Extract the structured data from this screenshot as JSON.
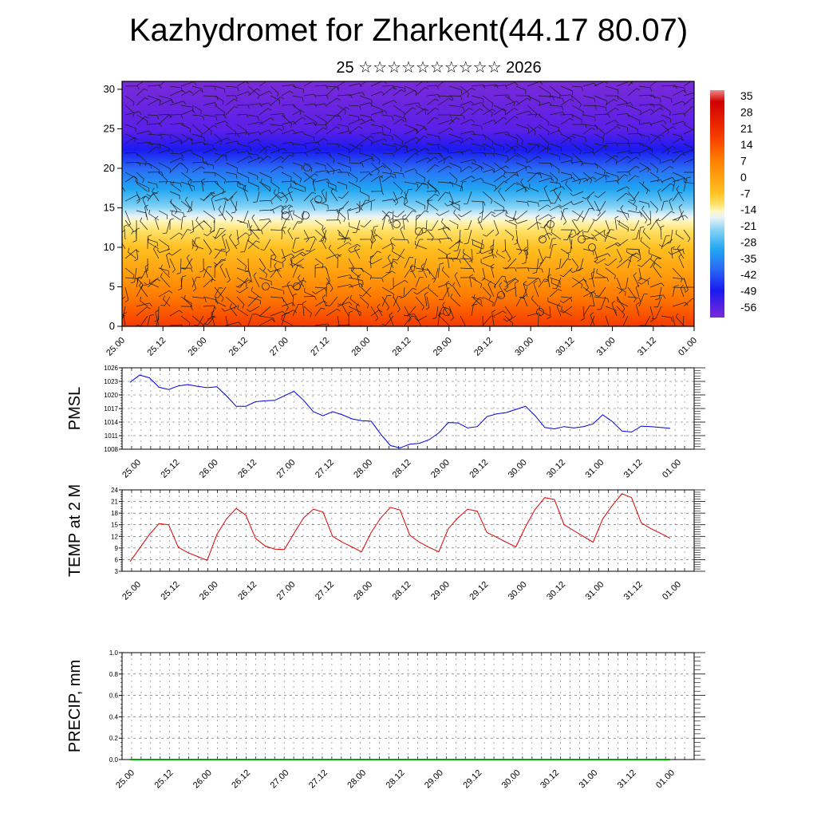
{
  "header": {
    "title": "Kazhydromet for Zharkent(44.17 80.07)",
    "subtitle": "25 ☆☆☆☆☆☆☆☆☆☆ 2026"
  },
  "chart_data": [
    {
      "type": "heatmap",
      "name": "vertical cross-section temperature (colour) with wind barbs",
      "x_tick_labels": [
        "25.00",
        "25.12",
        "26.00",
        "26.12",
        "27.00",
        "27.12",
        "28.00",
        "28.12",
        "29.00",
        "29.12",
        "30.00",
        "30.12",
        "31.00",
        "31.12",
        "01.00"
      ],
      "y_tick_labels": [
        "0",
        "5",
        "10",
        "15",
        "20",
        "25",
        "30"
      ],
      "ylim": [
        0,
        31
      ],
      "colorbar_labels": [
        "35",
        "28",
        "21",
        "14",
        "7",
        "0",
        "-7",
        "-14",
        "-21",
        "-28",
        "-35",
        "-42",
        "-49",
        "-56"
      ],
      "colors": {
        "c_m60": "#7a2ad8",
        "c_m50": "#5a1fe8",
        "c_m42": "#1a1af0",
        "c_m35": "#2a6ef5",
        "c_m28": "#21a6f2",
        "c_m21": "#7fd0f5",
        "c_m14": "#e7f3f8",
        "c_m10": "#fff7c0",
        "c_m7": "#ffe066",
        "c_0": "#ffc020",
        "c_7": "#ffa010",
        "c_14": "#ff7a00",
        "c_21": "#f53a00",
        "c_28": "#e00a0a",
        "c_35": "#d00000",
        "c_40": "#f08a8a"
      }
    },
    {
      "type": "line",
      "name": "PMSL",
      "ylabel": "PMSL",
      "ylim": [
        1008,
        1026
      ],
      "y_tick_labels": [
        "1008",
        "1011",
        "1014",
        "1017",
        "1020",
        "1023",
        "1026"
      ],
      "x_tick_labels": [
        "25.00",
        "25.12",
        "26.00",
        "26.12",
        "27.00",
        "27.12",
        "28.00",
        "28.12",
        "29.00",
        "29.12",
        "30.00",
        "30.12",
        "31.00",
        "31.12",
        "01.00"
      ],
      "line_color": "#0000dd",
      "values": [
        1022.8,
        1024.4,
        1023.8,
        1021.7,
        1021.2,
        1022.0,
        1022.3,
        1021.9,
        1021.6,
        1021.8,
        1019.8,
        1017.5,
        1017.5,
        1018.5,
        1018.7,
        1018.8,
        1019.8,
        1020.8,
        1018.8,
        1016.3,
        1015.4,
        1016.3,
        1015.6,
        1014.7,
        1014.3,
        1014.2,
        1011.3,
        1008.8,
        1008.3,
        1009.1,
        1009.3,
        1010.1,
        1011.6,
        1013.9,
        1013.8,
        1012.7,
        1013.0,
        1015.2,
        1015.8,
        1016.1,
        1016.8,
        1017.5,
        1015.4,
        1012.8,
        1012.5,
        1013.0,
        1012.7,
        1013.0,
        1013.6,
        1015.6,
        1014.1,
        1012.0,
        1011.8,
        1013.1,
        1013.0,
        1012.8,
        1012.6
      ]
    },
    {
      "type": "line",
      "name": "TEMP at 2 M",
      "ylabel": "TEMP at 2 M",
      "ylim": [
        3,
        24
      ],
      "y_tick_labels": [
        "3",
        "6",
        "9",
        "12",
        "15",
        "18",
        "21",
        "24"
      ],
      "x_tick_labels": [
        "25.00",
        "25.12",
        "26.00",
        "26.12",
        "27.00",
        "27.12",
        "28.00",
        "28.12",
        "29.00",
        "29.12",
        "30.00",
        "30.12",
        "31.00",
        "31.12",
        "01.00"
      ],
      "line_color": "#dd0000",
      "values": [
        5.5,
        9.0,
        12.5,
        15.3,
        15.0,
        9.2,
        7.8,
        6.8,
        5.8,
        12.5,
        16.5,
        19.2,
        17.5,
        11.5,
        9.5,
        8.7,
        8.6,
        12.8,
        16.8,
        19.0,
        18.3,
        12.0,
        10.5,
        9.3,
        8.0,
        13.0,
        16.8,
        19.5,
        18.8,
        12.3,
        10.5,
        9.2,
        8.0,
        14.0,
        16.8,
        19.0,
        18.5,
        13.0,
        11.8,
        10.5,
        9.3,
        14.5,
        19.0,
        22.0,
        21.5,
        15.0,
        13.5,
        12.0,
        10.5,
        16.5,
        20.0,
        23.0,
        22.0,
        15.5,
        14.0,
        12.8,
        11.5
      ]
    },
    {
      "type": "line",
      "name": "PRECIP, mm",
      "ylabel": "PRECIP, mm",
      "ylim": [
        0,
        1
      ],
      "y_tick_labels": [
        "0.0",
        "0.2",
        "0.4",
        "0.6",
        "0.8",
        "1.0"
      ],
      "x_tick_labels": [
        "25.00",
        "25.12",
        "26.00",
        "26.12",
        "27.00",
        "27.12",
        "28.00",
        "28.12",
        "29.00",
        "29.12",
        "30.00",
        "30.12",
        "31.00",
        "31.12",
        "01.00"
      ],
      "line_color": "#00aa00",
      "values": [
        0,
        0,
        0,
        0,
        0,
        0,
        0,
        0,
        0,
        0,
        0,
        0,
        0,
        0,
        0,
        0,
        0,
        0,
        0,
        0,
        0,
        0,
        0,
        0,
        0,
        0,
        0,
        0,
        0,
        0,
        0,
        0,
        0,
        0,
        0,
        0,
        0,
        0,
        0,
        0,
        0,
        0,
        0,
        0,
        0,
        0,
        0,
        0,
        0,
        0,
        0,
        0,
        0,
        0,
        0,
        0,
        0
      ]
    }
  ]
}
